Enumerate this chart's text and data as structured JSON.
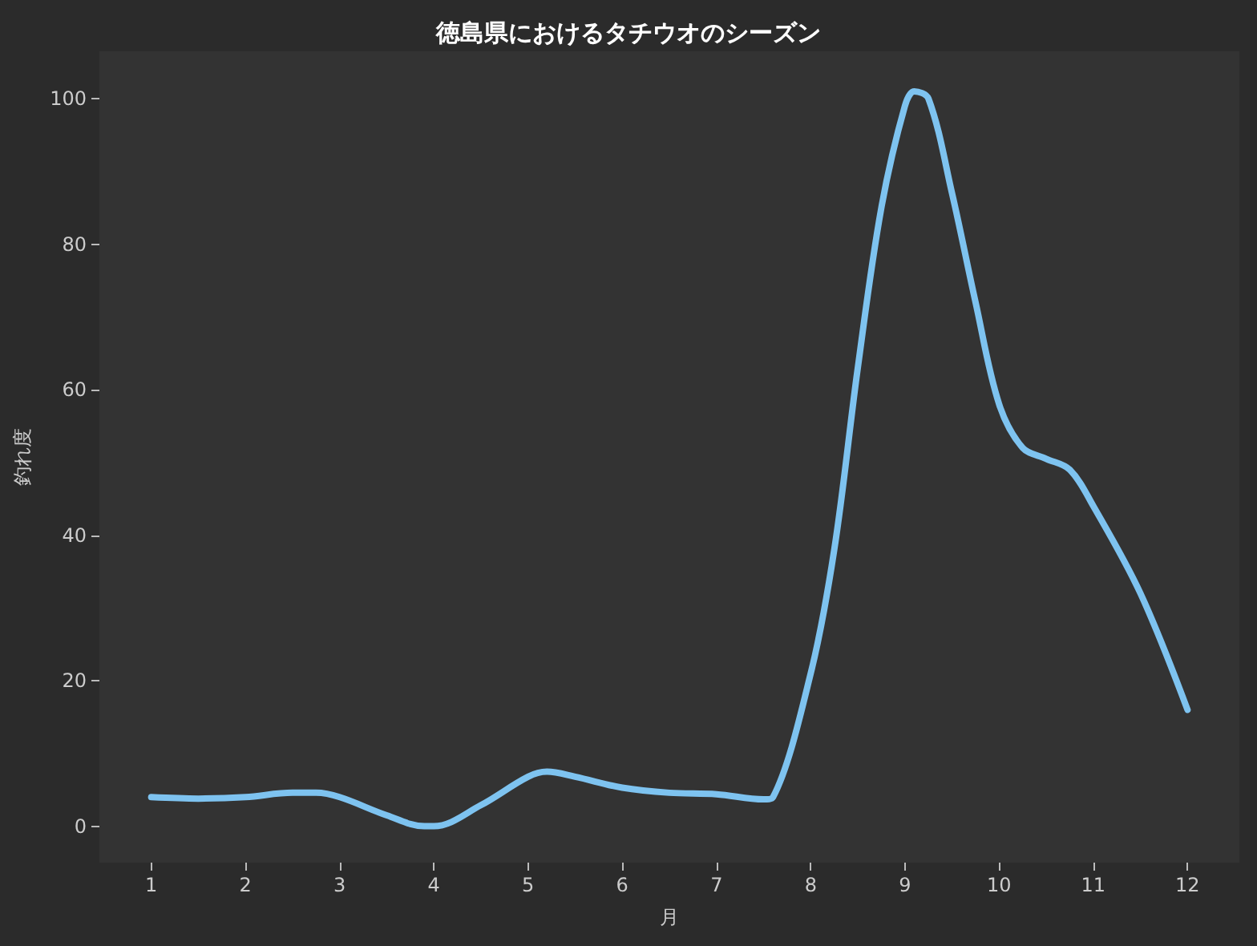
{
  "chart_data": {
    "type": "line",
    "title": "徳島県におけるタチウオのシーズン",
    "xlabel": "月",
    "ylabel": "釣れ度",
    "x": [
      1,
      1.5,
      2,
      2.5,
      2.75,
      3,
      3.5,
      3.9,
      4,
      4.5,
      5,
      5.2,
      5.5,
      6,
      6.5,
      7,
      7.5,
      7.6,
      8,
      8.25,
      8.5,
      8.75,
      9,
      9.1,
      9.25,
      9.5,
      9.75,
      10,
      10.25,
      10.5,
      10.75,
      11,
      11.5,
      12
    ],
    "series": [
      {
        "color": "#7ec3f0",
        "values": [
          4,
          3.8,
          4,
          4.6,
          4.6,
          4,
          1.5,
          0,
          0,
          2.9,
          6.8,
          7.5,
          6.8,
          5.3,
          4.6,
          4.4,
          3.7,
          4,
          21,
          38,
          63,
          85,
          99,
          101,
          100,
          87,
          72,
          58,
          52,
          50.5,
          49,
          44,
          32,
          16
        ]
      }
    ],
    "xlim": [
      0.45,
      12.55
    ],
    "xticks": [
      1,
      2,
      3,
      4,
      5,
      6,
      7,
      8,
      9,
      10,
      11,
      12
    ],
    "ylim": [
      -5,
      106.5
    ],
    "yticks": [
      0,
      20,
      40,
      60,
      80,
      100
    ],
    "grid": false,
    "marker": "none",
    "line_style": "solid"
  }
}
